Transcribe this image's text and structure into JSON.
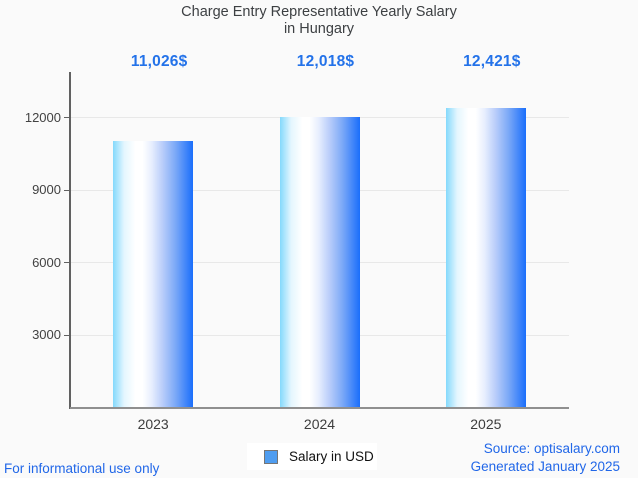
{
  "chart_data": {
    "type": "bar",
    "title_lines": [
      "Charge Entry Representative Yearly Salary",
      "in Hungary"
    ],
    "categories": [
      "2023",
      "2024",
      "2025"
    ],
    "values": [
      11026,
      12018,
      12421
    ],
    "value_labels": [
      "11,026$",
      "12,018$",
      "12,421$"
    ],
    "series_name": "Salary in USD",
    "y_ticks": [
      3000,
      6000,
      9000,
      12000
    ],
    "ylim": [
      0,
      13900
    ],
    "grid": "horizontal-only",
    "legend_position": "bottom-center",
    "bar_color_gradient": [
      "#84d9fc",
      "#ffffff",
      "#1a6efb"
    ],
    "legend_swatch_color": "#4f9df0",
    "accent_blue": "#2372e9",
    "title_color": "#3d4043",
    "axis_color": "#616161",
    "gridline_color": "#e8e8e8",
    "background_color": "#fafafa"
  },
  "footer": {
    "disclaimer": "For informational use only",
    "source": "Source: optisalary.com",
    "generated": "Generated January 2025"
  }
}
